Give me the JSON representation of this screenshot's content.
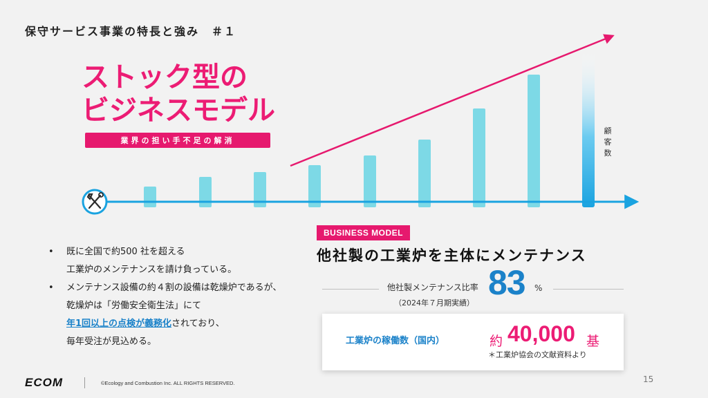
{
  "title": "保守サービス事業の特長と強み　＃１",
  "headline": {
    "line1": "ストック型の",
    "line2": "ビジネスモデル",
    "pill": "業界の担い手不足の解消"
  },
  "growth_chart": {
    "axis_label": "顧客数",
    "bar_count": 9,
    "trend": "increasing"
  },
  "bullets": [
    {
      "lines": [
        "既に全国で約500 社を超える",
        "工業炉のメンテナンスを請け負っている。"
      ]
    },
    {
      "lines": [
        "メンテナンス設備の約４割の設備は乾燥炉であるが、",
        "乾燥炉は「労働安全衛生法」にて"
      ],
      "emphasis": "年1回以上の点検が義務化",
      "emphasis_after": "されており、",
      "last_line": "毎年受注が見込める。"
    }
  ],
  "business_model": {
    "badge": "BUSINESS MODEL",
    "heading": "他社製の工業炉を主体にメンテナンス",
    "ratio_label": "他社製メンテナンス比率",
    "ratio_value": "83",
    "ratio_unit": "%",
    "ratio_note": "（2024年７月期実績）"
  },
  "card": {
    "label": "工業炉の稼働数（国内）",
    "approx": "約",
    "value": "40,000",
    "unit": "基",
    "note": "＊工業炉協会の文献資料より"
  },
  "footer": {
    "logo": "ECOM",
    "copyright": "©Ecology and Combustion Inc. ALL RIGHTS RESERVED.",
    "page": "15"
  },
  "colors": {
    "accent_pink": "#e6196e",
    "accent_blue": "#1b82c9",
    "bar_cyan": "#7dd9e6",
    "axis_blue": "#1aa3e0"
  },
  "icons": [
    "tools-icon"
  ]
}
